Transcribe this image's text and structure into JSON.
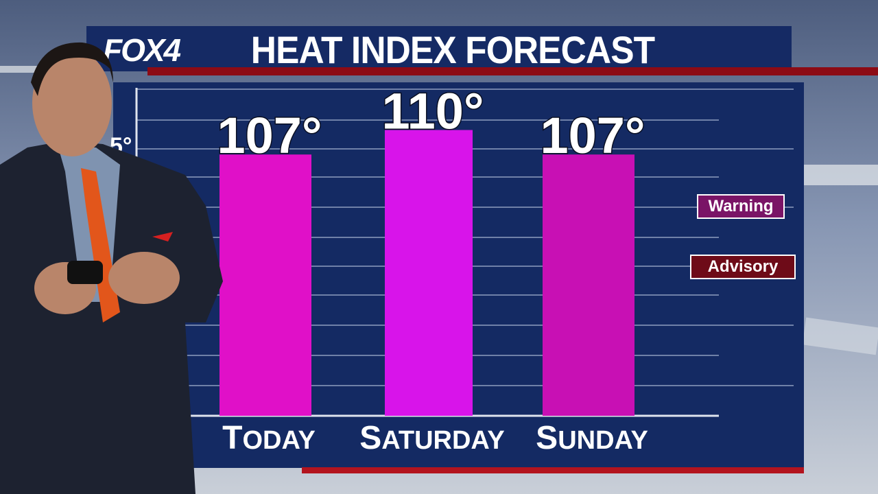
{
  "brand": {
    "logo_text": "FOX4"
  },
  "header": {
    "title": "HEAT INDEX FORECAST"
  },
  "legend": {
    "warning_label": "Warning",
    "advisory_label": "Advisory",
    "warning_color": "#7a1466",
    "advisory_color": "#6e0b18"
  },
  "colors": {
    "panel": "#142a63",
    "bar_today": "#e010c8",
    "bar_saturday": "#d814ea",
    "bar_sunday": "#c810b4",
    "accent_red": "#b3141e"
  },
  "chart_data": {
    "type": "bar",
    "title": "HEAT INDEX FORECAST",
    "categories": [
      "Today",
      "Saturday",
      "Sunday"
    ],
    "values": [
      107,
      110,
      107
    ],
    "value_labels": [
      "107°",
      "110°",
      "107°"
    ],
    "ylim": [
      75,
      115
    ],
    "y_ticks_visible": [
      "5°"
    ],
    "grid": true,
    "legend_position": "right"
  }
}
